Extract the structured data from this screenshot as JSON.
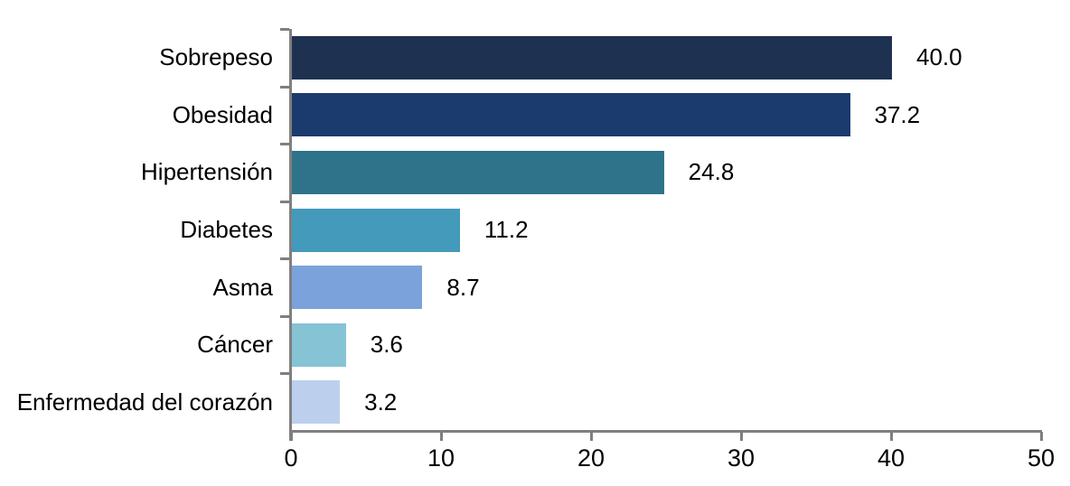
{
  "chart_data": {
    "type": "bar",
    "orientation": "horizontal",
    "title": "",
    "xlabel": "",
    "ylabel": "",
    "categories": [
      "Sobrepeso",
      "Obesidad",
      "Hipertensión",
      "Diabetes",
      "Asma",
      "Cáncer",
      "Enfermedad del corazón"
    ],
    "values": [
      40.0,
      37.2,
      24.8,
      11.2,
      8.7,
      3.6,
      3.2
    ],
    "value_labels": [
      "40.0",
      "37.2",
      "24.8",
      "11.2",
      "8.7",
      "3.6",
      "3.2"
    ],
    "bar_colors": [
      "#1f3150",
      "#1b3a6e",
      "#2e7389",
      "#439aba",
      "#7ba2db",
      "#85c3d5",
      "#bcd0ee"
    ],
    "xlim": [
      0,
      50
    ],
    "xticks": [
      0,
      10,
      20,
      30,
      40,
      50
    ],
    "xtick_labels": [
      "0",
      "10",
      "20",
      "30",
      "40",
      "50"
    ],
    "axis_color": "#7f7f7f",
    "text_color": "#000000",
    "grid": false,
    "legend": false
  }
}
